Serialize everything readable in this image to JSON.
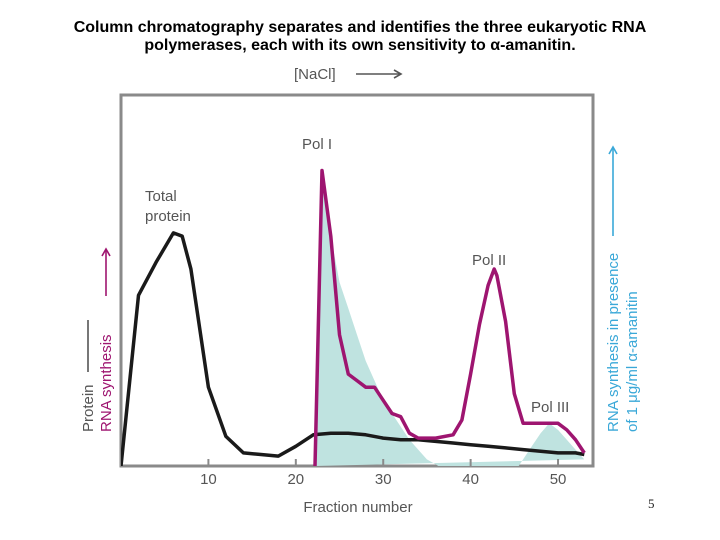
{
  "slide": {
    "title_line1": "Column chromatography separates and identifies the three eukaryotic RNA",
    "title_line2": "polymerases, each with its own sensitivity to α-amanitin.",
    "page_number": "5"
  },
  "colors": {
    "protein": "#1a1a1a",
    "rna": "#9e1570",
    "amanitin_fill": "#bfe3e0",
    "amanitin_label": "#3aa8d8",
    "axis_label": "#555555"
  },
  "chart_data": {
    "type": "line",
    "xlabel": "Fraction number",
    "gradient_label": "[NaCl]",
    "left_axis_label_protein": "Protein",
    "left_axis_label_rna": "RNA synthesis",
    "right_axis_label_line1": "RNA synthesis in presence",
    "right_axis_label_line2": "of 1 μg/ml α-amanitin",
    "xlim": [
      0,
      54
    ],
    "ylim": [
      0,
      100
    ],
    "x_ticks": [
      "10",
      "20",
      "30",
      "40",
      "50"
    ],
    "annotations": {
      "total_protein_line1": "Total",
      "total_protein_line2": "protein",
      "pol1": "Pol I",
      "pol2": "Pol II",
      "pol3": "Pol III"
    },
    "series": [
      {
        "name": "Total protein",
        "x": [
          0,
          2,
          4,
          6,
          7,
          8,
          10,
          12,
          14,
          16,
          18,
          20,
          22,
          24,
          26,
          28,
          30,
          32,
          34,
          36,
          38,
          40,
          42,
          44,
          46,
          48,
          50,
          52,
          53
        ],
        "y": [
          0,
          52,
          62,
          71,
          70,
          60,
          24,
          9,
          4,
          3.5,
          3,
          6,
          9.5,
          10,
          10,
          9.5,
          8.5,
          8,
          8,
          7.5,
          7,
          6.5,
          6,
          5.5,
          5,
          4.5,
          4,
          4,
          3.5
        ]
      },
      {
        "name": "RNA synthesis",
        "x": [
          22.2,
          23,
          24,
          25,
          26,
          27,
          28,
          29,
          30,
          31,
          32,
          33,
          34,
          36,
          38,
          39,
          40,
          41,
          42,
          42.7,
          43,
          44,
          45,
          46,
          47,
          48,
          49,
          50,
          51,
          52,
          53
        ],
        "y": [
          0,
          90,
          70,
          40,
          28,
          26,
          24,
          24,
          20,
          16,
          15,
          10,
          8.5,
          8.5,
          9.5,
          14,
          28,
          43,
          55,
          60,
          58,
          44,
          22,
          13,
          13,
          13,
          13,
          13,
          11,
          8,
          4
        ]
      },
      {
        "name": "RNA synthesis in presence of 1 μg/ml α-amanitin",
        "x": [
          22.2,
          23,
          24,
          25,
          26,
          27,
          28,
          29,
          30,
          31,
          32,
          33,
          34,
          35,
          36,
          36.3,
          45.5,
          46,
          47,
          48,
          49,
          50,
          51,
          52,
          53
        ],
        "y": [
          0,
          90,
          70,
          56,
          48,
          40,
          32,
          26,
          20,
          16,
          12,
          8,
          5,
          2,
          0.5,
          0,
          0,
          2,
          6,
          10,
          13,
          11,
          8,
          5,
          2
        ]
      }
    ]
  }
}
